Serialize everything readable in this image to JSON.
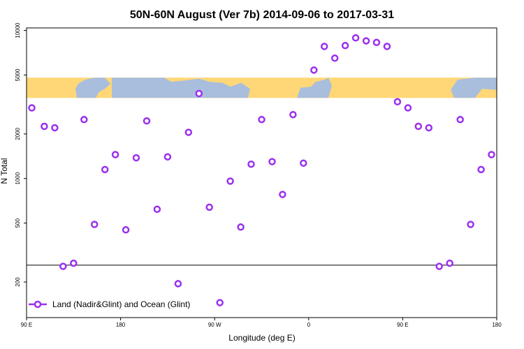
{
  "chart_data": {
    "type": "scatter",
    "title": "50N-60N August (Ver 7b)   2014-09-06 to 2017-03-31",
    "xlabel": "Longitude (deg E)",
    "ylabel": "N Total",
    "x_ticks": [
      {
        "value": 90,
        "label": "90 E"
      },
      {
        "value": 180,
        "label": "180"
      },
      {
        "value": 270,
        "label": "90 W"
      },
      {
        "value": 360,
        "label": "0"
      },
      {
        "value": 450,
        "label": "90 E"
      },
      {
        "value": 540,
        "label": "180"
      }
    ],
    "y_ticks": [
      {
        "value": 200,
        "label": "200"
      },
      {
        "value": 500,
        "label": "500"
      },
      {
        "value": 1000,
        "label": "1000"
      },
      {
        "value": 2000,
        "label": "2000"
      },
      {
        "value": 5000,
        "label": "5000"
      },
      {
        "value": 10000,
        "label": "10000"
      }
    ],
    "xlim": [
      90,
      540
    ],
    "ylim": [
      115,
      10400
    ],
    "y_scale": "log",
    "reference_line_y": 260,
    "map_band_y_range": [
      3500,
      4800
    ],
    "legend": {
      "position": "bottom-left",
      "label": "Land (Nadir&Glint) and Ocean (Glint)"
    },
    "series": [
      {
        "name": "Land (Nadir&Glint) and Ocean (Glint)",
        "color": "#9b30ee",
        "x": [
          95,
          107,
          117,
          125,
          135,
          145,
          155,
          165,
          175,
          185,
          195,
          205,
          215,
          225,
          235,
          245,
          255,
          265,
          275,
          285,
          295,
          305,
          315,
          325,
          335,
          345,
          355,
          365,
          375,
          385,
          395,
          405,
          415,
          425,
          435,
          445,
          455,
          465,
          475,
          485,
          495,
          505,
          515,
          525,
          535
        ],
        "y": [
          3000,
          2250,
          2200,
          255,
          268,
          2500,
          490,
          1150,
          1450,
          450,
          1380,
          2450,
          620,
          1400,
          195,
          2050,
          3750,
          640,
          145,
          960,
          470,
          1250,
          2500,
          1300,
          780,
          2700,
          1270,
          5400,
          7800,
          6500,
          7900,
          8900,
          8500,
          8300,
          7800,
          3300,
          3000,
          2250,
          2200,
          255,
          268,
          2500,
          490,
          1150,
          1450
        ]
      }
    ]
  }
}
